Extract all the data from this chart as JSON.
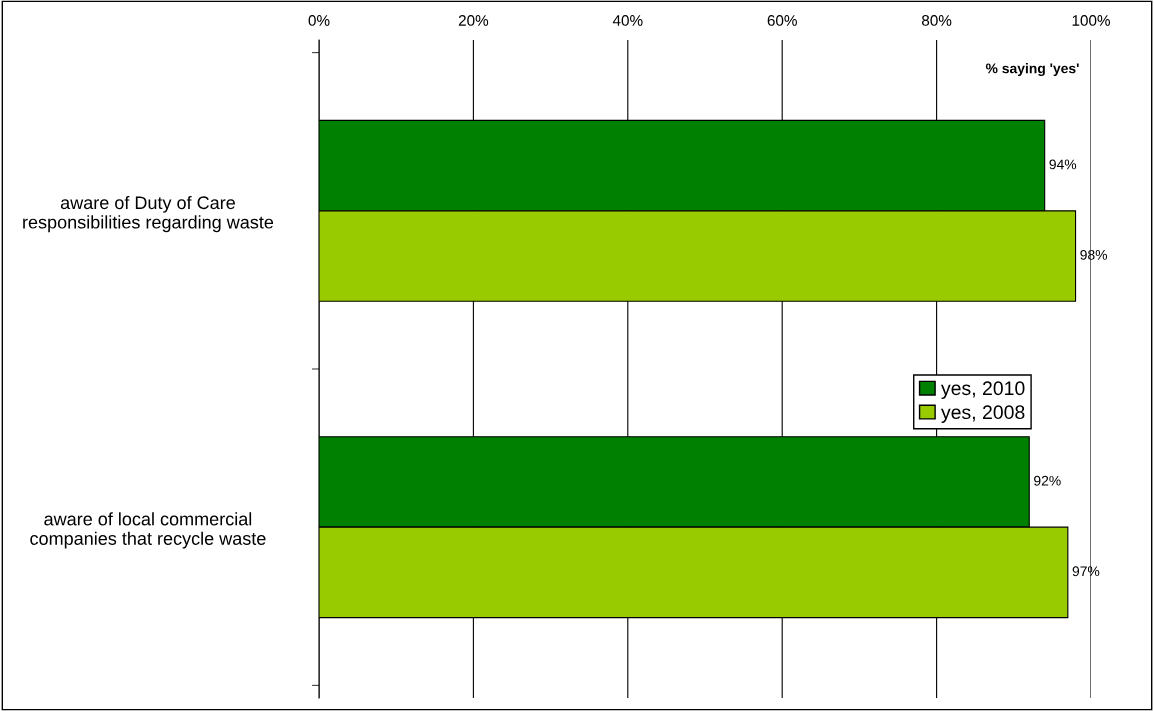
{
  "chart_data": {
    "type": "bar",
    "orientation": "horizontal",
    "categories": [
      "aware of Duty of Care responsibilities regarding waste",
      "aware of local commercial companies that recycle waste"
    ],
    "series": [
      {
        "name": "yes, 2010",
        "color": "#008000",
        "values": [
          94,
          92
        ],
        "value_labels": [
          "94%",
          "92%"
        ]
      },
      {
        "name": "yes, 2008",
        "color": "#99cc00",
        "values": [
          98,
          97
        ],
        "value_labels": [
          "98%",
          "97%"
        ]
      }
    ],
    "xlim": [
      0,
      100
    ],
    "xticks": [
      {
        "value": 0,
        "label": "0%"
      },
      {
        "value": 20,
        "label": "20%"
      },
      {
        "value": 40,
        "label": "40%"
      },
      {
        "value": 60,
        "label": "60%"
      },
      {
        "value": 80,
        "label": "80%"
      },
      {
        "value": 100,
        "label": "100%"
      }
    ],
    "annotations": [
      "% saying 'yes'"
    ],
    "grid": "x",
    "legend": "right"
  }
}
